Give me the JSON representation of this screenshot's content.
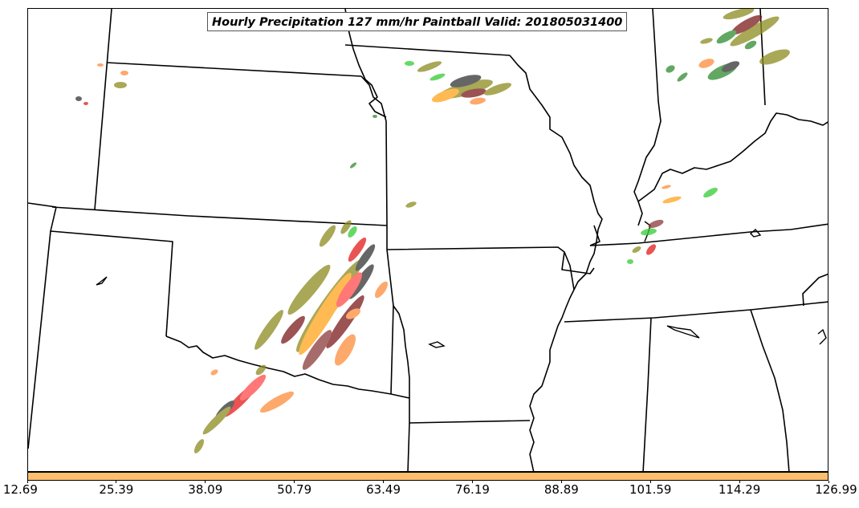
{
  "title": "Hourly Precipitation 127 mm/hr Paintball Valid: 201805031400",
  "colorbar": {
    "color": "#fdbf6f",
    "min": 12.69,
    "max": 126.99,
    "ticks": [
      "12.69",
      "25.39",
      "38.09",
      "50.79",
      "63.49",
      "76.19",
      "88.89",
      "101.59",
      "114.29",
      "126.99"
    ]
  },
  "paintball_colors": [
    "#fd8d3c",
    "#ffa31a",
    "#e31a1c",
    "#ff4a4a",
    "#7a1a1a",
    "#8b3a3a",
    "#333333",
    "#8c8c1f",
    "#2e8b2e",
    "#33cc33"
  ]
}
